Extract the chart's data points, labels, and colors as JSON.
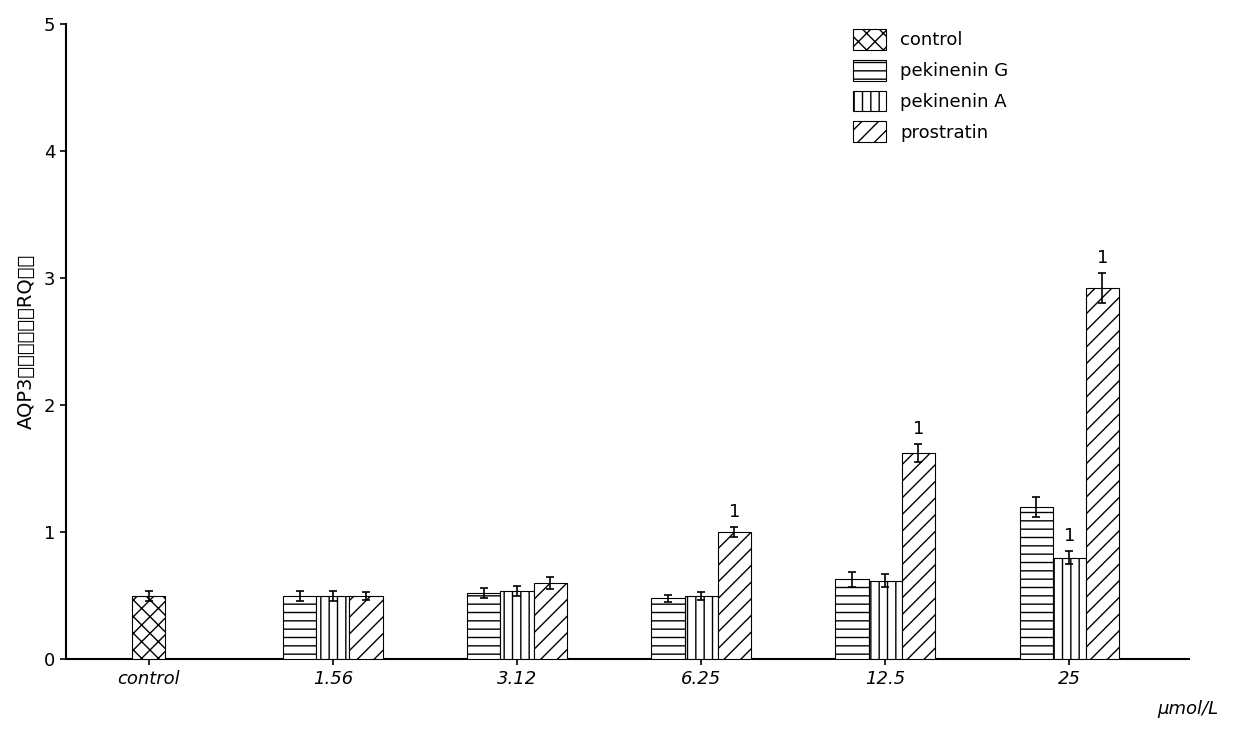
{
  "groups": [
    "control",
    "1.56",
    "3.12",
    "6.25",
    "12.5",
    "25"
  ],
  "series": [
    "control",
    "pekinenin G",
    "pekinenin A",
    "prostratin"
  ],
  "values": [
    [
      0.5,
      null,
      null,
      null
    ],
    [
      null,
      0.5,
      0.5,
      0.5
    ],
    [
      null,
      0.52,
      0.54,
      0.6
    ],
    [
      null,
      0.48,
      0.5,
      1.0
    ],
    [
      null,
      0.63,
      0.62,
      1.62
    ],
    [
      null,
      1.2,
      0.8,
      2.92
    ]
  ],
  "errors": [
    [
      0.04,
      null,
      null,
      null
    ],
    [
      null,
      0.04,
      0.04,
      0.03
    ],
    [
      null,
      0.04,
      0.04,
      0.05
    ],
    [
      null,
      0.03,
      0.03,
      0.04
    ],
    [
      null,
      0.06,
      0.05,
      0.07
    ],
    [
      null,
      0.08,
      0.05,
      0.12
    ]
  ],
  "sig_labels": [
    {
      "group_idx": 3,
      "series_idx": 3,
      "label": "1"
    },
    {
      "group_idx": 4,
      "series_idx": 3,
      "label": "1"
    },
    {
      "group_idx": 5,
      "series_idx": 2,
      "label": "1"
    },
    {
      "group_idx": 5,
      "series_idx": 3,
      "label": "1"
    }
  ],
  "ylabel": "AQP3相对表达量（RQ値）",
  "xlabel_unit": "μmol/L",
  "ylim": [
    0,
    5
  ],
  "yticks": [
    0,
    1,
    2,
    3,
    4,
    5
  ],
  "bar_width": 0.18,
  "hatch_patterns": [
    "xx",
    "--",
    "||",
    "//"
  ],
  "facecolor": "white",
  "edgecolor": "black",
  "legend_fontsize": 13,
  "tick_fontsize": 13,
  "label_fontsize": 14,
  "annot_fontsize": 13
}
